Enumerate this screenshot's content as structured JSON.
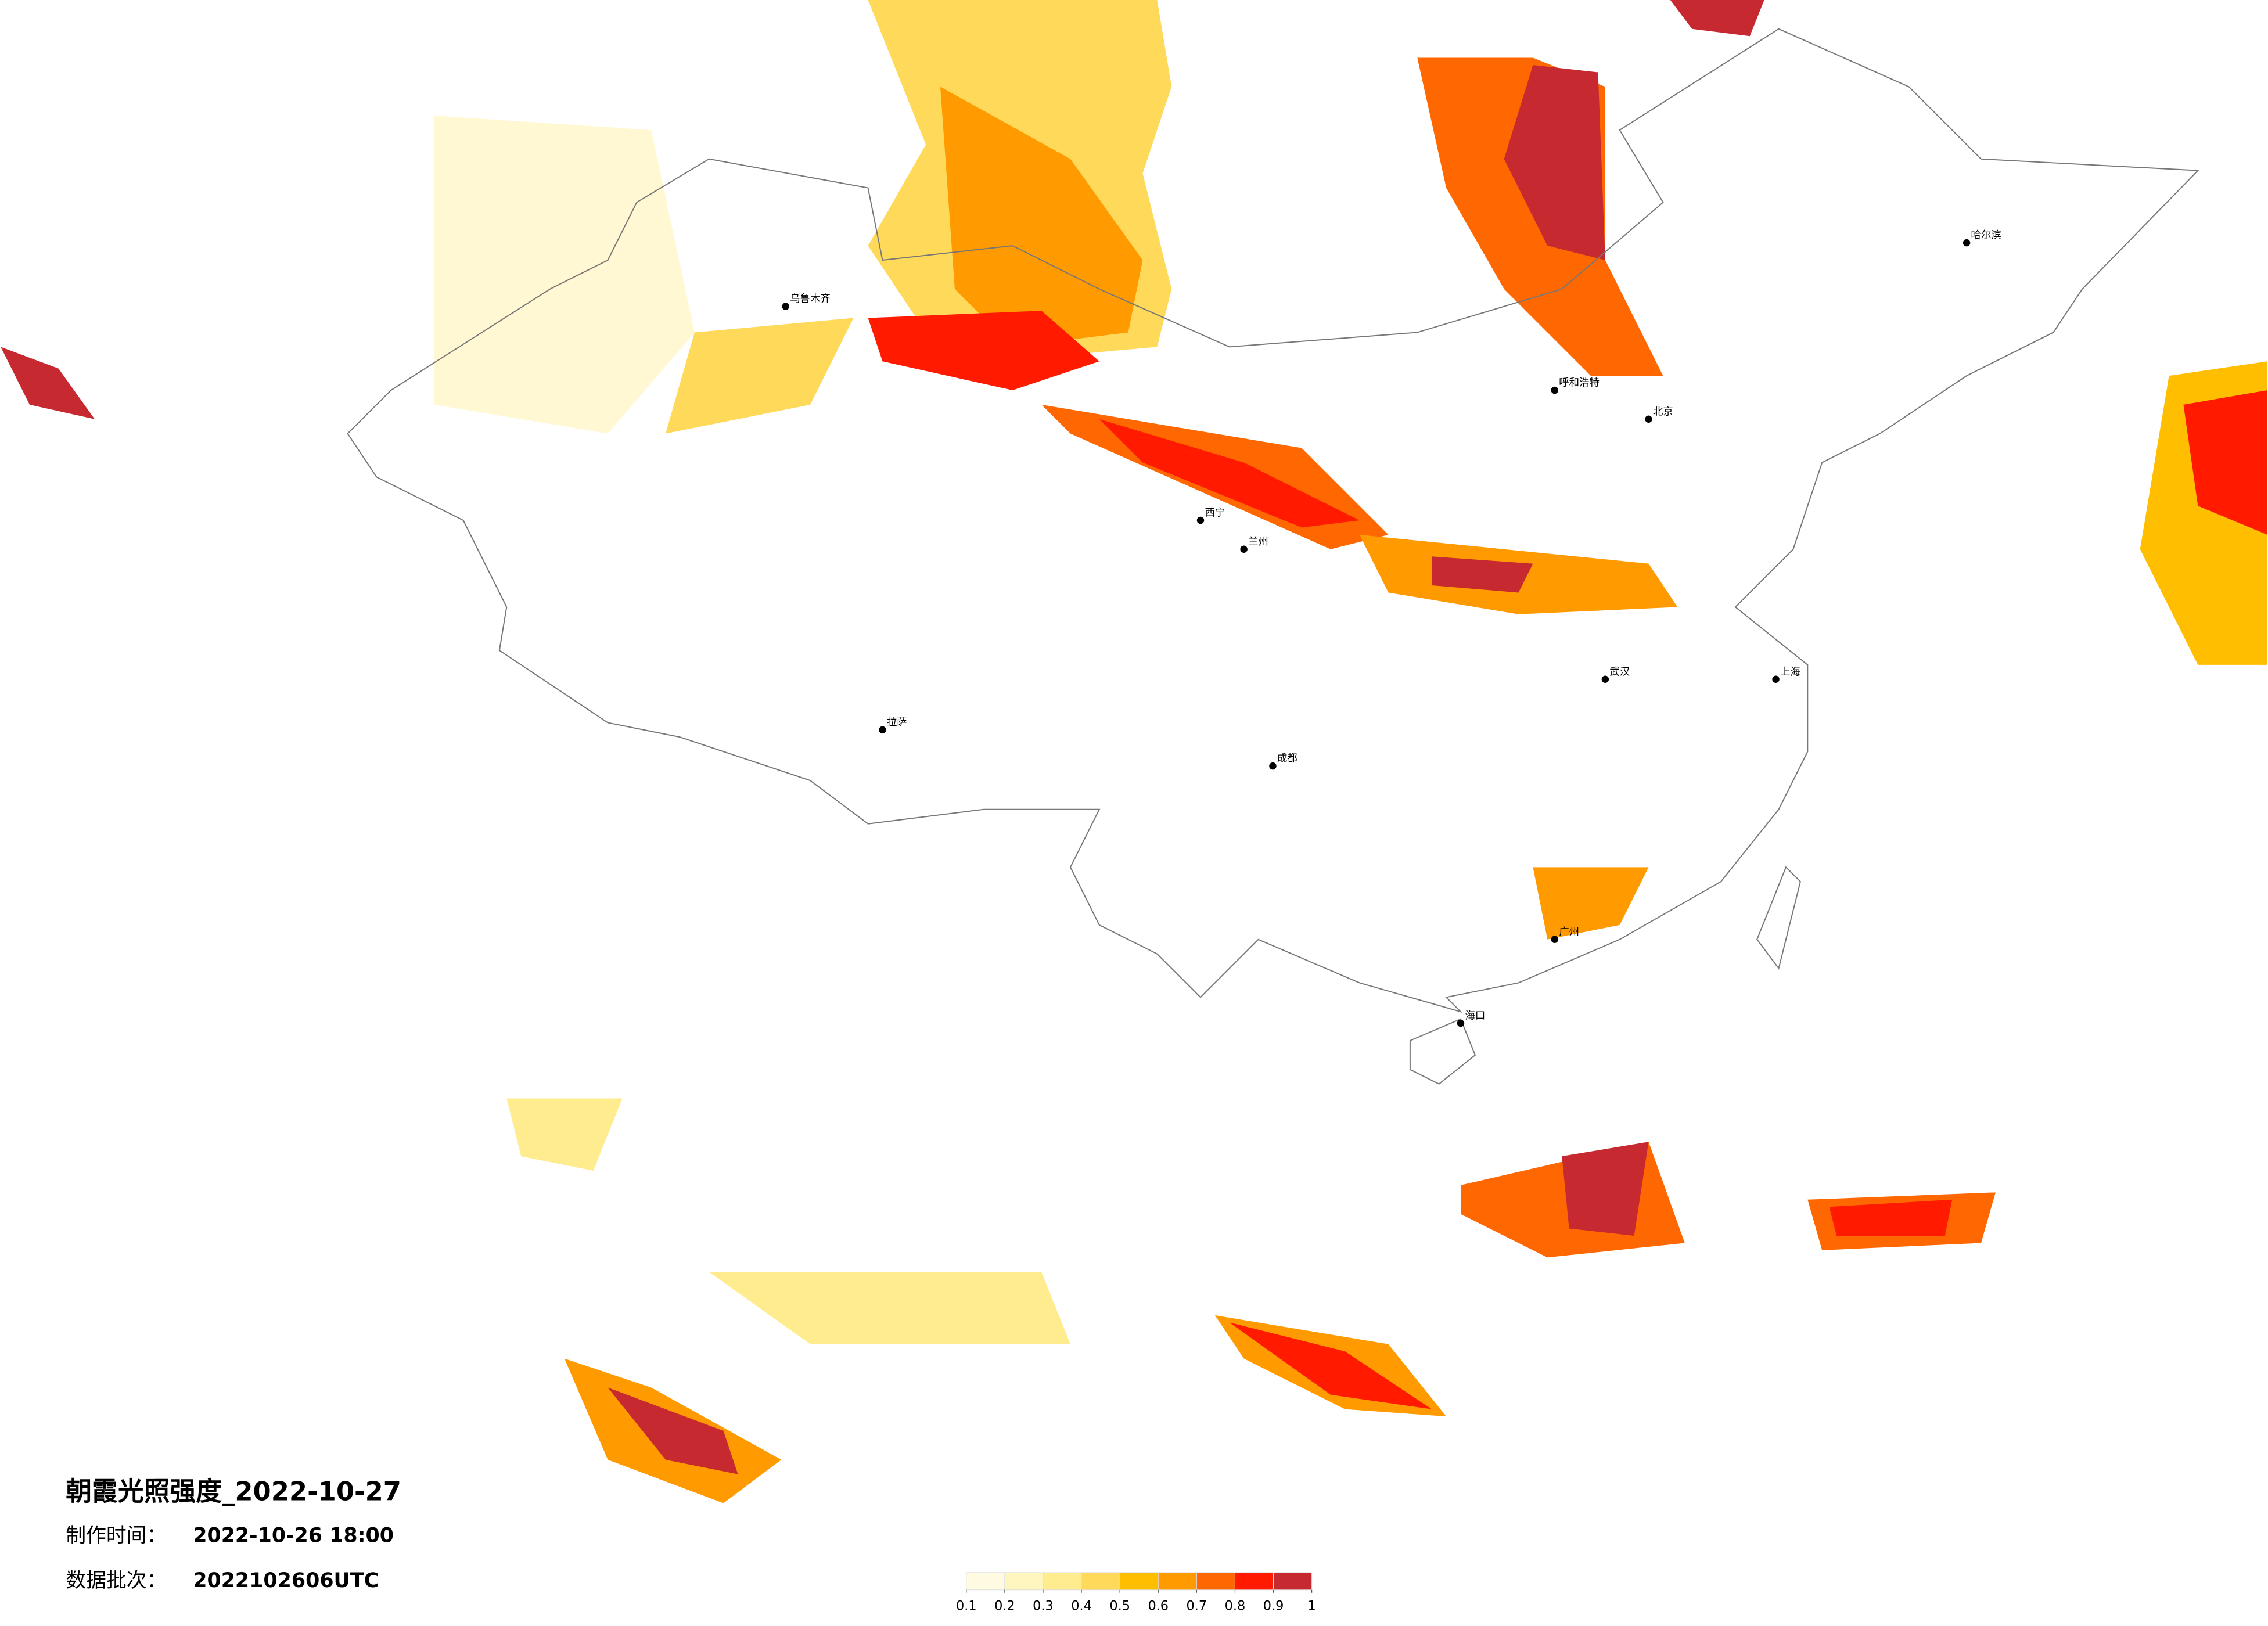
{
  "title": "朝霞光照强度_2022-10-27",
  "made_time": {
    "label": "制作时间：",
    "value": "2022-10-26 18:00"
  },
  "batch": {
    "label": "数据批次：",
    "value": "2022102606UTC"
  },
  "legend": {
    "colors": [
      "#fffbe3",
      "#fff5bf",
      "#ffec8f",
      "#ffd95a",
      "#ffbf00",
      "#ff9a00",
      "#ff6700",
      "#ff1a00",
      "#c62a30"
    ],
    "ticks": [
      0.1,
      0.2,
      0.3,
      0.4,
      0.5,
      0.6,
      0.7,
      0.8,
      0.9,
      1
    ]
  },
  "cities": [
    "北京",
    "上海",
    "广州",
    "拉萨",
    "乌鲁木齐",
    "哈尔滨",
    "成都",
    "西宁",
    "兰州",
    "呼和浩特",
    "武汉",
    "海口"
  ]
}
